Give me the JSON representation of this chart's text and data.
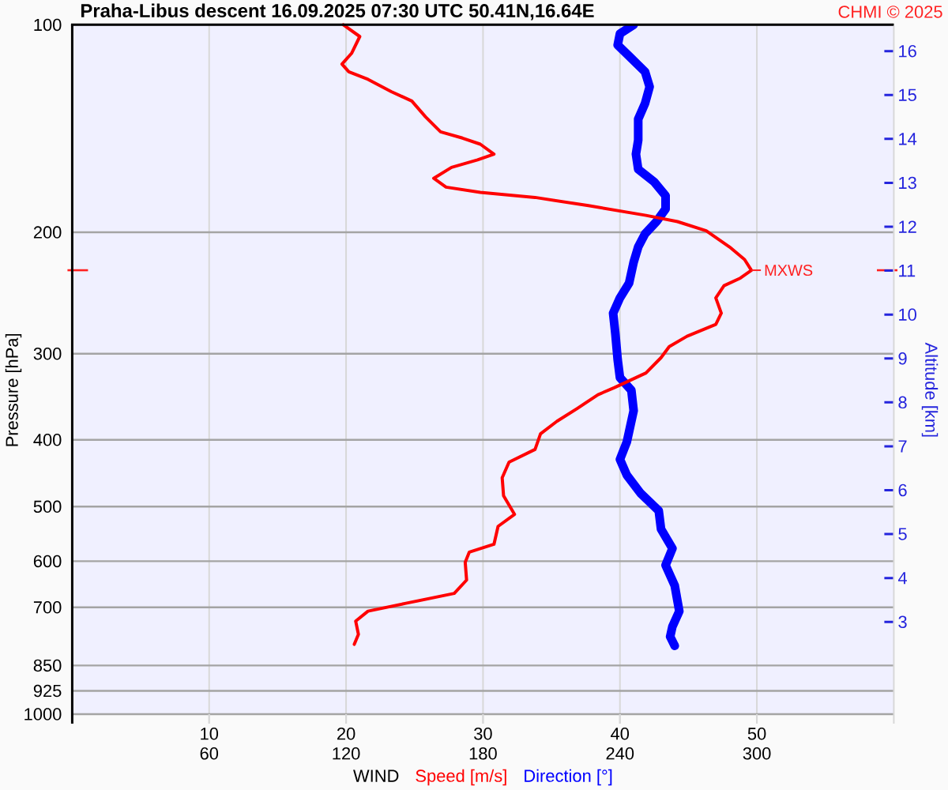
{
  "chart_data": {
    "type": "line",
    "orientation": "horizontal",
    "title": "Praha-Libus descent 16.09.2025 07:30 UTC 50.41N,16.64E",
    "xlabel": "WIND",
    "ylabel": "Pressure [hPa]",
    "y2label": "Altitude [km]",
    "annotations": [
      "CHMI © 2025",
      {
        "text": "MXWS",
        "x": 49.6,
        "y": 227
      }
    ],
    "series": [
      {
        "name": "Speed [m/s]",
        "color": "#ff0000",
        "values": [
          19.8,
          21.0,
          20.4,
          19.7,
          20.2,
          21.6,
          23.3,
          24.8,
          25.8,
          26.9,
          28.5,
          29.8,
          30.8,
          29.6,
          27.7,
          26.4,
          27.3,
          29.8,
          33.8,
          37.7,
          41.9,
          44.2,
          46.3,
          48.0,
          49.1,
          49.6,
          48.8,
          47.6,
          47.0,
          47.4,
          47.0,
          44.9,
          43.6,
          43.0,
          41.9,
          39.6,
          38.4,
          36.9,
          35.4,
          34.2,
          33.8,
          31.9,
          31.4,
          31.5,
          32.3,
          31.1,
          30.8,
          29.0,
          28.7,
          28.8,
          27.9,
          24.3,
          21.6,
          20.7,
          20.9,
          20.6
        ],
        "x": [
          100,
          104,
          110,
          114,
          117,
          120,
          125,
          129,
          136,
          143,
          146,
          149,
          154,
          157,
          161,
          167,
          172,
          175,
          178,
          183,
          189,
          193,
          199,
          210,
          219,
          227,
          233,
          239,
          249,
          262,
          272,
          283,
          293,
          304,
          320,
          336,
          344,
          360,
          376,
          392,
          413,
          431,
          454,
          482,
          513,
          534,
          567,
          582,
          602,
          639,
          668,
          691,
          709,
          733,
          766,
          792
        ]
      },
      {
        "name": "Direction [°]",
        "color": "#0000ff",
        "axis": "x2",
        "values": [
          246,
          240,
          239,
          244,
          251,
          253,
          251,
          248,
          248,
          247,
          248,
          255,
          260,
          260,
          256,
          251,
          248,
          246,
          244,
          240,
          237,
          238,
          239,
          240,
          245,
          246,
          243,
          240,
          243,
          249,
          257,
          258,
          263,
          260,
          264,
          266,
          263,
          262,
          264
        ],
        "x": [
          100,
          103,
          107,
          111,
          117,
          123,
          130,
          137,
          147,
          154,
          162,
          169,
          177,
          185,
          193,
          201,
          210,
          221,
          237,
          249,
          262,
          281,
          306,
          325,
          339,
          363,
          403,
          427,
          450,
          478,
          507,
          539,
          575,
          608,
          651,
          709,
          746,
          772,
          796
        ]
      }
    ],
    "xlim": [
      0,
      60
    ],
    "xticks": [
      10,
      20,
      30,
      40,
      50
    ],
    "x2lim": [
      0,
      360
    ],
    "x2ticks": [
      60,
      120,
      180,
      240,
      300
    ],
    "ylim": [
      1000,
      100
    ],
    "yticks": [
      100,
      200,
      300,
      400,
      500,
      600,
      700,
      850,
      925,
      1000
    ],
    "y2lim": [
      0.9,
      16.6
    ],
    "y2ticks": [
      3,
      4,
      5,
      6,
      7,
      8,
      9,
      10,
      11,
      12,
      13,
      14,
      15,
      16
    ],
    "log": "y",
    "grid": true,
    "legend": "bottom"
  }
}
